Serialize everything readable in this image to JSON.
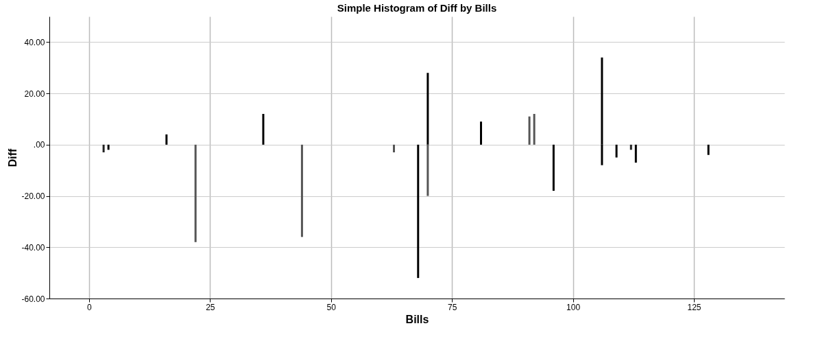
{
  "chart_data": {
    "type": "bar",
    "title": "Simple Histogram of Diff by Bills",
    "xlabel": "Bills",
    "ylabel": "Diff",
    "series": [
      {
        "x": [
          3,
          4,
          16,
          22,
          36,
          44,
          63,
          68,
          70,
          81,
          91,
          92,
          96,
          106,
          109,
          112,
          113,
          128
        ],
        "values": [
          -3,
          -2,
          4,
          -38,
          12,
          -36,
          -3,
          -52,
          28,
          9,
          11,
          12,
          -18,
          34,
          -5,
          -2,
          -7,
          -4
        ],
        "colors": [
          "#222222",
          "#000000",
          "#000000",
          "#555555",
          "#000000",
          "#555555",
          "#555555",
          "#000000",
          "#000000",
          "#000000",
          "#555555",
          "#555555",
          "#000000",
          "#000000",
          "#000000",
          "#222222",
          "#000000",
          "#000000"
        ]
      },
      {
        "x": [
          70,
          106
        ],
        "values": [
          -20,
          -8
        ],
        "colors": [
          "#555555",
          "#000000"
        ]
      }
    ],
    "xlim": [
      -7.5,
      143
    ],
    "xticks": [
      0,
      25,
      50,
      75,
      100,
      125
    ],
    "ylim": [
      -60,
      50
    ],
    "yticks": [
      {
        "value": -60,
        "label": "-60.00"
      },
      {
        "value": -40,
        "label": "-40.00"
      },
      {
        "value": -20,
        "label": "-20.00"
      },
      {
        "value": 0,
        "label": ".00"
      },
      {
        "value": 20,
        "label": "20.00"
      },
      {
        "value": 40,
        "label": "40.00"
      }
    ],
    "grid": true
  }
}
